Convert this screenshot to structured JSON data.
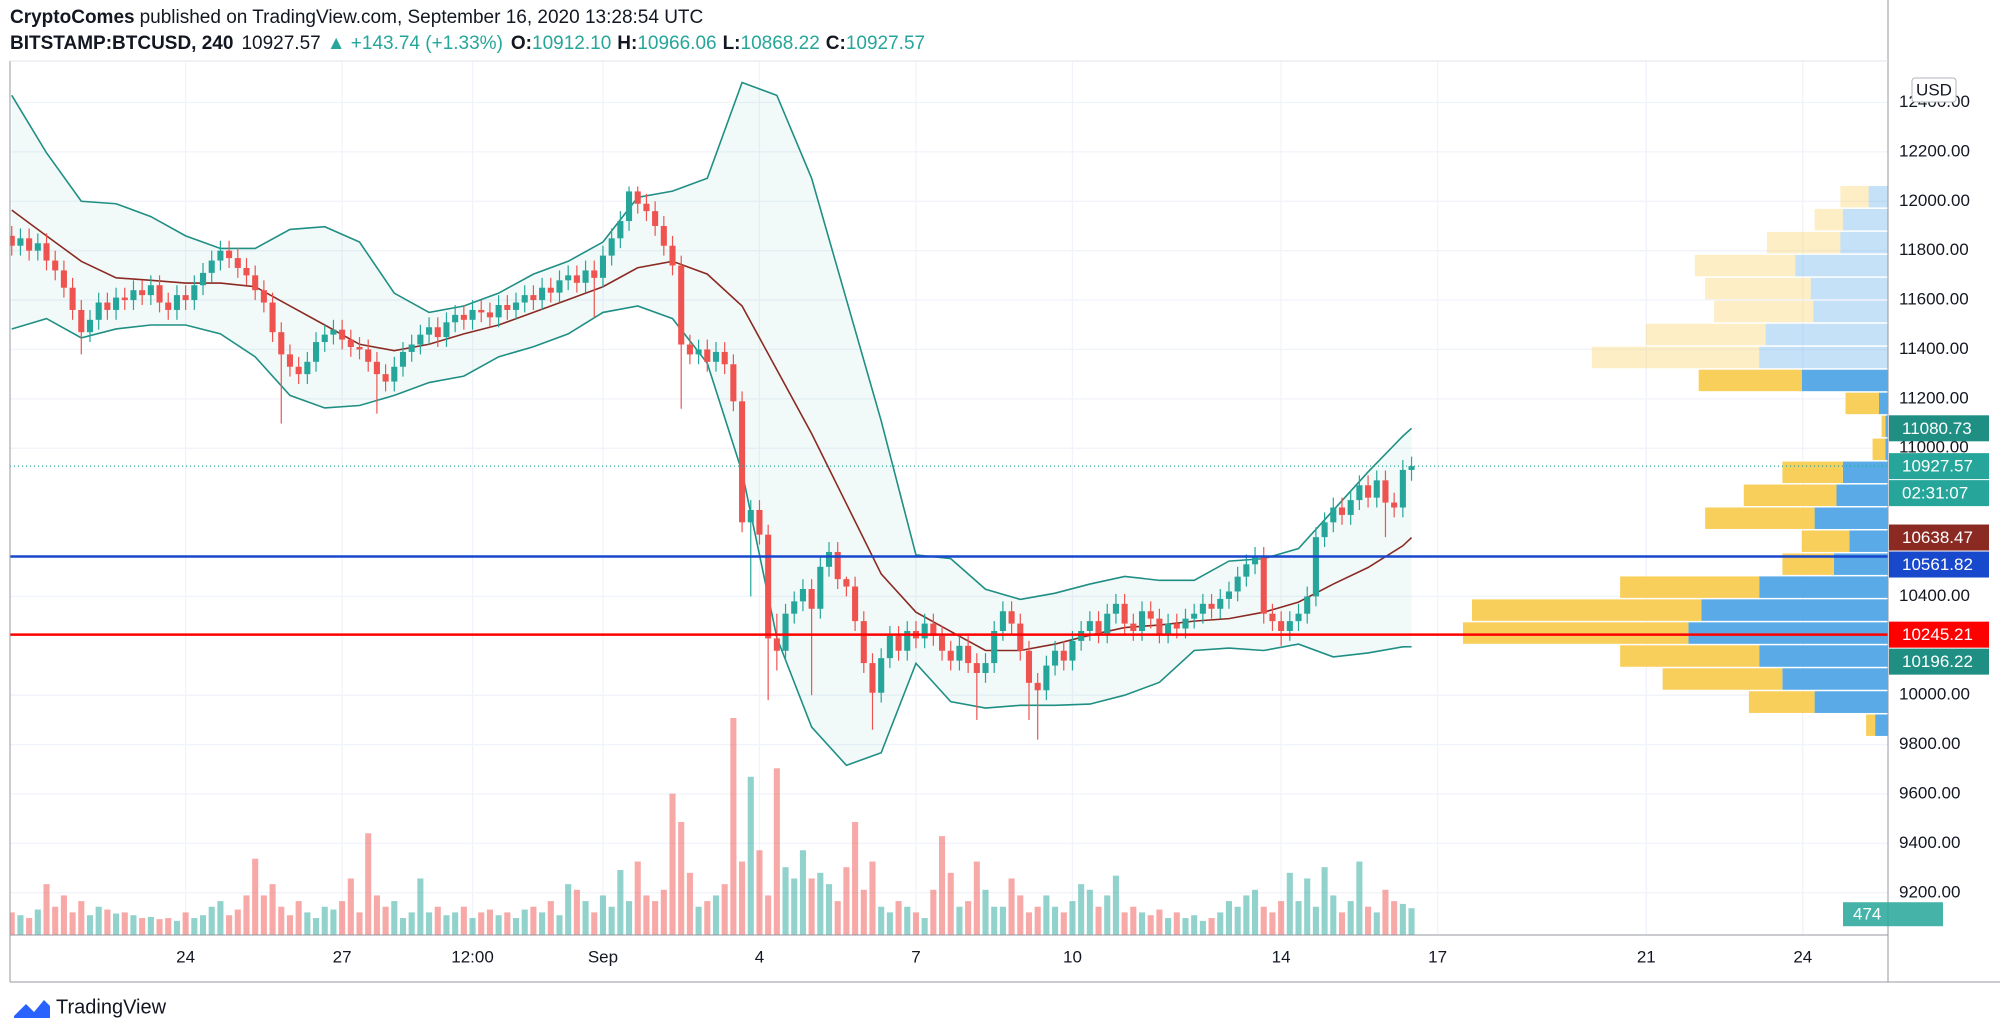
{
  "header": {
    "author": "CryptoComes",
    "published": "published on TradingView.com, September 16, 2020 13:28:54 UTC",
    "symbol": "BITSTAMP:BTCUSD, 240",
    "last": "10927.57",
    "change": "▲ +143.74 (+1.33%)",
    "ohlc": [
      {
        "label": "O:",
        "value": "10912.10"
      },
      {
        "label": "H:",
        "value": "10966.06"
      },
      {
        "label": "L:",
        "value": "10868.22"
      },
      {
        "label": "C:",
        "value": "10927.57"
      }
    ]
  },
  "footer": {
    "brand": "TradingView"
  },
  "chart_data": {
    "type": "candlestick",
    "currency": "USD",
    "countdown": "02:31:07",
    "up_color": "#26a69a",
    "down_color": "#ef5350",
    "grid": true,
    "xlim": [
      -0.2,
      215.8
    ],
    "ylim": [
      9029,
      12568
    ],
    "xticks": [
      {
        "value": 20,
        "label": "24"
      },
      {
        "value": 38,
        "label": "27"
      },
      {
        "value": 53,
        "label": "12:00"
      },
      {
        "value": 68,
        "label": "Sep"
      },
      {
        "value": 86,
        "label": "4"
      },
      {
        "value": 104,
        "label": "7"
      },
      {
        "value": 122,
        "label": "10"
      },
      {
        "value": 146,
        "label": "14"
      },
      {
        "value": 164,
        "label": "17"
      },
      {
        "value": 188,
        "label": "21"
      },
      {
        "value": 206,
        "label": "24"
      }
    ],
    "yticks": [
      {
        "value": 9200,
        "label": "9200.00"
      },
      {
        "value": 9400,
        "label": "9400.00"
      },
      {
        "value": 9600,
        "label": "9600.00"
      },
      {
        "value": 9800,
        "label": "9800.00"
      },
      {
        "value": 10000,
        "label": "10000.00"
      },
      {
        "value": 10400,
        "label": "10400.00"
      },
      {
        "value": 11000,
        "label": "11000.00"
      },
      {
        "value": 11200,
        "label": "11200.00"
      },
      {
        "value": 11400,
        "label": "11400.00"
      },
      {
        "value": 11600,
        "label": "11600.00"
      },
      {
        "value": 11800,
        "label": "11800.00"
      },
      {
        "value": 12000,
        "label": "12000.00"
      },
      {
        "value": 12200,
        "label": "12200.00"
      },
      {
        "value": 12400,
        "label": "12400.00"
      }
    ],
    "open": [
      11860,
      11820,
      11850,
      11800,
      11830,
      11760,
      11720,
      11650,
      11560,
      11470,
      11520,
      11590,
      11560,
      11610,
      11600,
      11640,
      11620,
      11660,
      11590,
      11560,
      11620,
      11600,
      11660,
      11710,
      11760,
      11800,
      11770,
      11730,
      11700,
      11640,
      11590,
      11470,
      11380,
      11330,
      11300,
      11350,
      11430,
      11460,
      11480,
      11440,
      11410,
      11400,
      11350,
      11300,
      11270,
      11330,
      11390,
      11420,
      11460,
      11490,
      11450,
      11510,
      11540,
      11520,
      11560,
      11550,
      11530,
      11580,
      11560,
      11590,
      11620,
      11600,
      11650,
      11630,
      11680,
      11700,
      11670,
      11720,
      11690,
      11780,
      11850,
      11920,
      12040,
      11990,
      11960,
      11900,
      11820,
      11740,
      11420,
      11380,
      11400,
      11350,
      11390,
      11340,
      11190,
      10700,
      10750,
      10650,
      10230,
      10180,
      10330,
      10380,
      10430,
      10350,
      10520,
      10580,
      10470,
      10440,
      10300,
      10130,
      10010,
      10150,
      10240,
      10180,
      10260,
      10230,
      10290,
      10240,
      10180,
      10140,
      10200,
      10130,
      10090,
      10130,
      10260,
      10340,
      10290,
      10180,
      10050,
      10020,
      10120,
      10180,
      10140,
      10220,
      10260,
      10300,
      10250,
      10330,
      10370,
      10290,
      10260,
      10340,
      10310,
      10250,
      10290,
      10270,
      10310,
      10330,
      10370,
      10350,
      10390,
      10420,
      10480,
      10530,
      10560,
      10330,
      10300,
      10260,
      10300,
      10330,
      10400,
      10640,
      10700,
      10760,
      10730,
      10790,
      10850,
      10800,
      10870,
      10780,
      10760,
      10912.1
    ],
    "high": [
      11900,
      11890,
      11890,
      11870,
      11870,
      11800,
      11760,
      11690,
      11600,
      11560,
      11630,
      11630,
      11650,
      11650,
      11680,
      11680,
      11700,
      11700,
      11630,
      11660,
      11660,
      11700,
      11750,
      11800,
      11840,
      11840,
      11810,
      11770,
      11740,
      11680,
      11630,
      11510,
      11420,
      11370,
      11390,
      11470,
      11500,
      11520,
      11520,
      11480,
      11450,
      11440,
      11390,
      11340,
      11370,
      11430,
      11460,
      11500,
      11530,
      11530,
      11550,
      11580,
      11580,
      11600,
      11600,
      11590,
      11620,
      11620,
      11630,
      11660,
      11660,
      11690,
      11690,
      11720,
      11740,
      11740,
      11760,
      11760,
      11820,
      11890,
      11960,
      12060,
      12060,
      12030,
      12000,
      11940,
      11860,
      11780,
      11460,
      11440,
      11440,
      11430,
      11430,
      11380,
      11230,
      10790,
      10790,
      10690,
      10330,
      10370,
      10420,
      10470,
      10470,
      10560,
      10620,
      10620,
      10480,
      10480,
      10340,
      10170,
      10190,
      10280,
      10280,
      10300,
      10300,
      10330,
      10330,
      10280,
      10220,
      10240,
      10240,
      10170,
      10170,
      10300,
      10380,
      10380,
      10330,
      10220,
      10090,
      10160,
      10220,
      10220,
      10260,
      10300,
      10340,
      10340,
      10370,
      10410,
      10410,
      10330,
      10380,
      10380,
      10350,
      10330,
      10330,
      10350,
      10370,
      10410,
      10410,
      10430,
      10460,
      10520,
      10570,
      10600,
      10600,
      10370,
      10340,
      10340,
      10370,
      10440,
      10680,
      10740,
      10800,
      10800,
      10830,
      10890,
      10890,
      10910,
      10910,
      10820,
      10952,
      10966.06
    ],
    "low": [
      11780,
      11780,
      11760,
      11760,
      11720,
      11680,
      11610,
      11520,
      11380,
      11430,
      11480,
      11520,
      11520,
      11560,
      11560,
      11580,
      11580,
      11550,
      11520,
      11520,
      11560,
      11560,
      11620,
      11670,
      11720,
      11730,
      11690,
      11660,
      11600,
      11550,
      11430,
      11100,
      11290,
      11260,
      11260,
      11310,
      11390,
      11420,
      11400,
      11370,
      11360,
      11310,
      11140,
      11230,
      11230,
      11290,
      11350,
      11380,
      11420,
      11410,
      11410,
      11470,
      11480,
      11480,
      11510,
      11490,
      11490,
      11520,
      11520,
      11550,
      11560,
      11560,
      11590,
      11590,
      11640,
      11630,
      11630,
      11530,
      11650,
      11740,
      11810,
      11880,
      11950,
      11920,
      11860,
      11780,
      11700,
      11160,
      11340,
      11340,
      11310,
      11310,
      11300,
      11150,
      10660,
      10400,
      10610,
      9980,
      10100,
      10140,
      10290,
      10340,
      10000,
      10310,
      10480,
      10430,
      10400,
      10260,
      10090,
      9860,
      9970,
      10110,
      10140,
      10140,
      10190,
      10190,
      10200,
      10140,
      10100,
      10100,
      10090,
      9900,
      10050,
      10090,
      10220,
      10250,
      10140,
      9900,
      9820,
      9980,
      10080,
      10100,
      10100,
      10180,
      10220,
      10210,
      10210,
      10290,
      10250,
      10220,
      10220,
      10270,
      10210,
      10210,
      10230,
      10230,
      10270,
      10290,
      10310,
      10310,
      10350,
      10380,
      10440,
      10490,
      10290,
      10260,
      10200,
      10220,
      10260,
      10290,
      10360,
      10600,
      10660,
      10690,
      10690,
      10750,
      10760,
      10760,
      10640,
      10720,
      10720,
      10868.22
    ],
    "close": [
      11820,
      11850,
      11800,
      11830,
      11760,
      11720,
      11650,
      11560,
      11470,
      11520,
      11590,
      11560,
      11610,
      11600,
      11640,
      11620,
      11660,
      11590,
      11560,
      11620,
      11600,
      11660,
      11710,
      11760,
      11800,
      11770,
      11730,
      11700,
      11640,
      11590,
      11470,
      11380,
      11330,
      11300,
      11350,
      11430,
      11460,
      11480,
      11440,
      11410,
      11400,
      11350,
      11300,
      11270,
      11330,
      11390,
      11420,
      11460,
      11490,
      11450,
      11510,
      11540,
      11520,
      11560,
      11550,
      11530,
      11580,
      11560,
      11590,
      11620,
      11600,
      11650,
      11630,
      11680,
      11700,
      11670,
      11720,
      11690,
      11780,
      11850,
      11920,
      12040,
      11990,
      11960,
      11900,
      11820,
      11740,
      11420,
      11380,
      11400,
      11350,
      11390,
      11340,
      11190,
      10700,
      10750,
      10650,
      10230,
      10180,
      10330,
      10380,
      10430,
      10350,
      10520,
      10580,
      10470,
      10440,
      10300,
      10130,
      10010,
      10150,
      10240,
      10180,
      10260,
      10230,
      10290,
      10240,
      10180,
      10140,
      10200,
      10130,
      10090,
      10130,
      10260,
      10340,
      10290,
      10180,
      10050,
      10020,
      10120,
      10180,
      10140,
      10220,
      10260,
      10300,
      10250,
      10330,
      10370,
      10290,
      10260,
      10340,
      10310,
      10250,
      10290,
      10270,
      10310,
      10330,
      10370,
      10350,
      10390,
      10420,
      10480,
      10530,
      10560,
      10330,
      10300,
      10260,
      10300,
      10330,
      10400,
      10640,
      10700,
      10760,
      10730,
      10790,
      10850,
      10800,
      10870,
      10780,
      10760,
      10912.1,
      10927.57
    ],
    "volume": {
      "values": [
        400,
        350,
        300,
        450,
        900,
        500,
        700,
        400,
        600,
        350,
        500,
        450,
        380,
        400,
        350,
        300,
        320,
        280,
        300,
        250,
        400,
        300,
        350,
        500,
        600,
        350,
        450,
        700,
        1350,
        700,
        900,
        500,
        350,
        600,
        400,
        300,
        500,
        450,
        600,
        1000,
        400,
        1800,
        700,
        500,
        600,
        300,
        400,
        1000,
        400,
        500,
        350,
        400,
        500,
        300,
        400,
        450,
        350,
        400,
        300,
        450,
        500,
        400,
        600,
        350,
        900,
        800,
        600,
        400,
        700,
        500,
        1150,
        600,
        1300,
        700,
        600,
        800,
        2500,
        2000,
        1100,
        500,
        600,
        700,
        900,
        3840,
        1300,
        2800,
        1500,
        700,
        2950,
        1200,
        1000,
        1500,
        1000,
        1100,
        900,
        600,
        1200,
        2000,
        800,
        1300,
        500,
        400,
        600,
        500,
        400,
        300,
        800,
        1750,
        1100,
        500,
        600,
        1300,
        800,
        500,
        500,
        1000,
        700,
        400,
        500,
        700,
        500,
        400,
        600,
        900,
        800,
        500,
        700,
        1050,
        400,
        500,
        400,
        350,
        450,
        300,
        400,
        300,
        350,
        250,
        300,
        400,
        600,
        500,
        700,
        800,
        500,
        400,
        600,
        1100,
        600,
        1000,
        500,
        1200,
        700,
        400,
        600,
        1300,
        500,
        400,
        800,
        600,
        550,
        474
      ]
    },
    "bands": {
      "color": "#1f8f84",
      "middle_color": "#8b2a22",
      "fill": "#26a69a",
      "x": [
        0,
        4,
        8,
        12,
        16,
        20,
        24,
        28,
        32,
        36,
        40,
        44,
        48,
        52,
        56,
        60,
        64,
        68,
        72,
        76,
        80,
        84,
        88,
        92,
        96,
        100,
        104,
        108,
        112,
        116,
        120,
        124,
        128,
        132,
        136,
        140,
        144,
        148,
        152,
        156,
        160,
        161
      ],
      "upper": [
        12429,
        12196,
        12000,
        11990,
        11938,
        11860,
        11809,
        11809,
        11886,
        11897,
        11835,
        11628,
        11550,
        11576,
        11628,
        11705,
        11757,
        11835,
        12016,
        12041,
        12093,
        12481,
        12429,
        12093,
        11602,
        11111,
        10568,
        10553,
        10429,
        10388,
        10413,
        10450,
        10481,
        10465,
        10465,
        10543,
        10553,
        10594,
        10749,
        10904,
        11049,
        11080.73
      ],
      "middle": [
        11964,
        11860,
        11757,
        11690,
        11680,
        11669,
        11669,
        11654,
        11576,
        11499,
        11421,
        11395,
        11421,
        11463,
        11499,
        11550,
        11602,
        11654,
        11731,
        11757,
        11705,
        11576,
        11318,
        11059,
        10775,
        10491,
        10336,
        10258,
        10181,
        10181,
        10207,
        10243,
        10274,
        10284,
        10300,
        10310,
        10336,
        10377,
        10450,
        10517,
        10605,
        10638.47
      ],
      "lower": [
        11483,
        11525,
        11447,
        11483,
        11499,
        11499,
        11463,
        11370,
        11214,
        11163,
        11173,
        11214,
        11266,
        11292,
        11370,
        11411,
        11463,
        11550,
        11576,
        11525,
        11344,
        10904,
        10233,
        9871,
        9716,
        9767,
        10129,
        9974,
        9948,
        9959,
        9959,
        9964,
        10000,
        10052,
        10181,
        10191,
        10181,
        10207,
        10155,
        10171,
        10196,
        10196.22
      ]
    },
    "horizontal_lines": [
      {
        "value": 10561.82,
        "color": "#1848cc"
      },
      {
        "value": 10245.21,
        "color": "#ff0000"
      }
    ],
    "profile": {
      "up_color": "#5aaae8",
      "down_color": "#f9cf5c",
      "value_area": [
        9829,
        11318
      ],
      "bins": [
        9829,
        9922,
        10016,
        10109,
        10202,
        10295,
        10388,
        10481,
        10574,
        10667,
        10760,
        10853,
        10946,
        11039,
        11132,
        11225,
        11318,
        11411,
        11504,
        11597,
        11690,
        11783,
        11876,
        11969,
        12062
      ],
      "up": [
        10,
        57,
        82,
        100,
        155,
        145,
        100,
        42,
        30,
        57,
        40,
        35,
        2,
        2,
        7,
        67,
        100,
        95,
        58,
        60,
        72,
        37,
        35,
        15
      ],
      "down": [
        7,
        51,
        93,
        108,
        175,
        178,
        108,
        40,
        37,
        85,
        72,
        47,
        10,
        3,
        26,
        80,
        130,
        93,
        77,
        82,
        78,
        57,
        22,
        22
      ]
    }
  }
}
